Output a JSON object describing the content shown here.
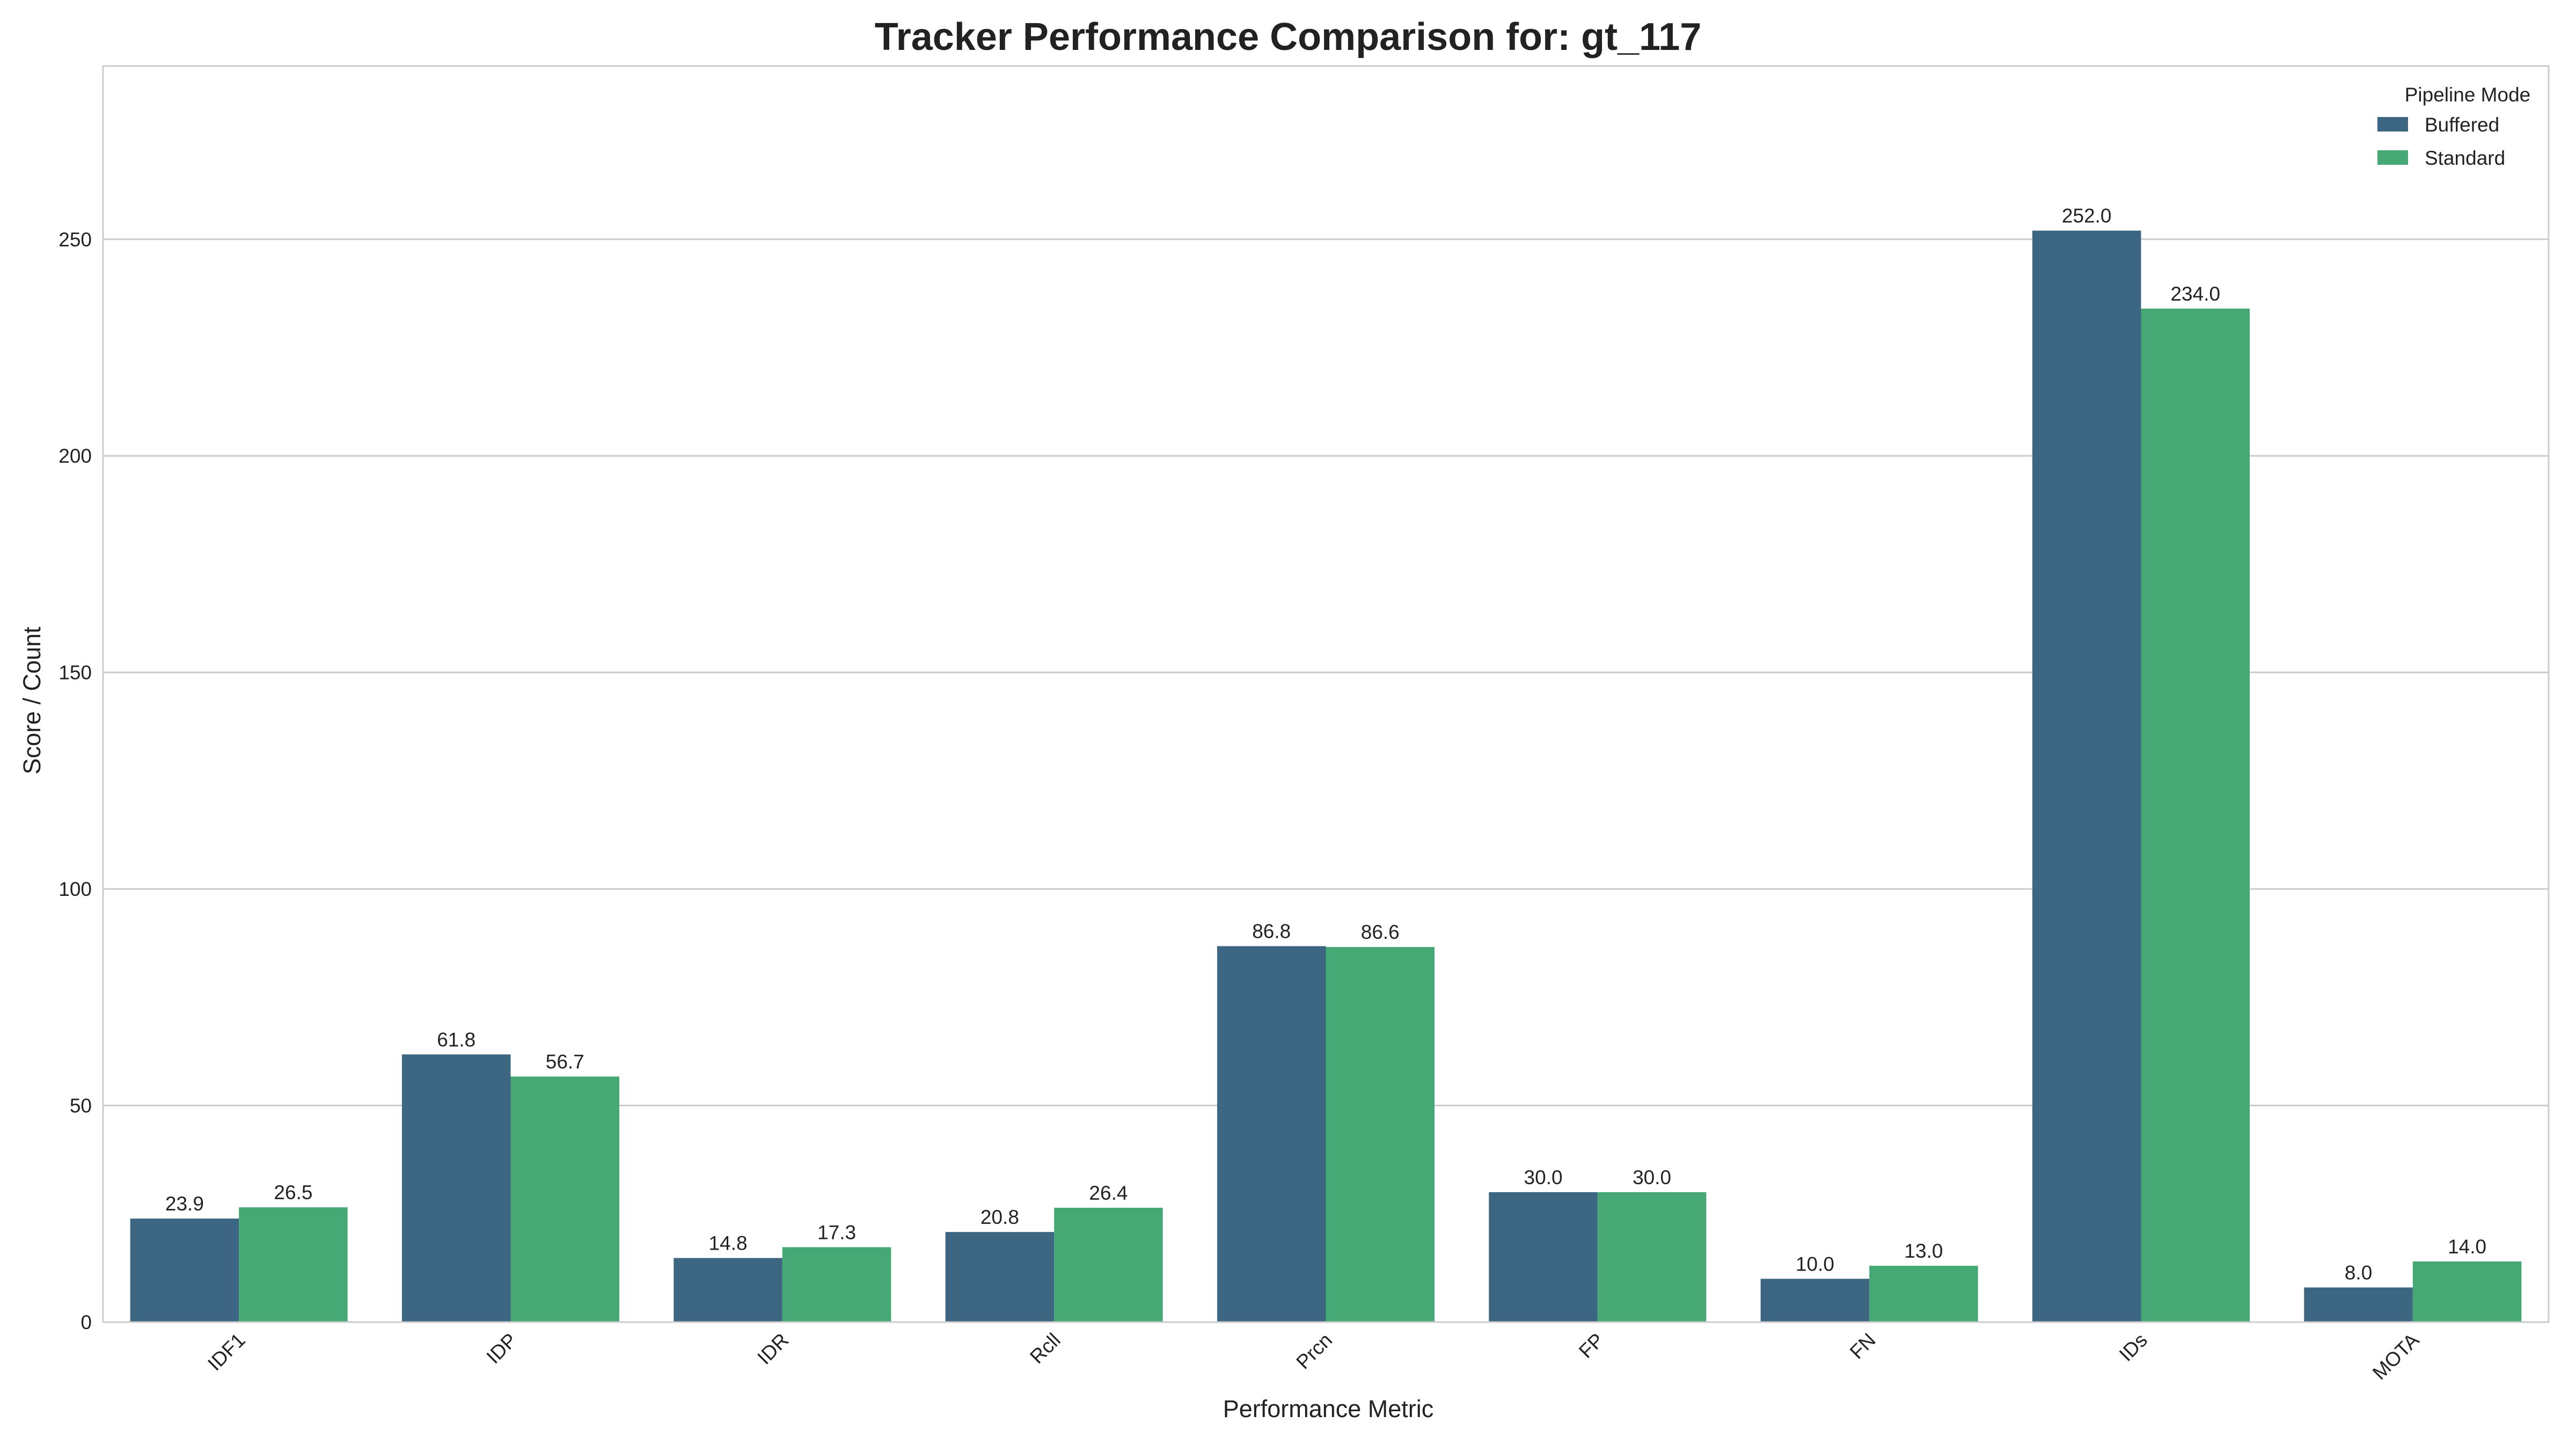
{
  "chart_data": {
    "type": "bar",
    "title": "Tracker Performance Comparison for: gt_117",
    "xlabel": "Performance Metric",
    "ylabel": "Score / Count",
    "categories": [
      "IDF1",
      "IDP",
      "IDR",
      "Rcll",
      "Prcn",
      "FP",
      "FN",
      "IDs",
      "MOTA"
    ],
    "series": [
      {
        "name": "Buffered",
        "color": "#3d6683",
        "values": [
          23.9,
          61.8,
          14.8,
          20.8,
          86.8,
          30.0,
          10.0,
          252.0,
          8.0
        ]
      },
      {
        "name": "Standard",
        "color": "#46a875",
        "values": [
          26.5,
          56.7,
          17.3,
          26.4,
          86.6,
          30.0,
          13.0,
          234.0,
          14.0
        ]
      }
    ],
    "data_labels": [
      [
        "23.9",
        "61.8",
        "14.8",
        "20.8",
        "86.8",
        "30.0",
        "10.0",
        "252.0",
        "8.0"
      ],
      [
        "26.5",
        "56.7",
        "17.3",
        "26.4",
        "86.6",
        "30.0",
        "13.0",
        "234.0",
        "14.0"
      ]
    ],
    "ylim": [
      0,
      290
    ],
    "yticks": [
      0,
      50,
      100,
      150,
      200,
      250
    ],
    "ytick_labels": [
      "0",
      "50",
      "100",
      "150",
      "200",
      "250"
    ],
    "grid": "horizontal",
    "legend": {
      "title": "Pipeline Mode",
      "placement": "top-right"
    }
  }
}
